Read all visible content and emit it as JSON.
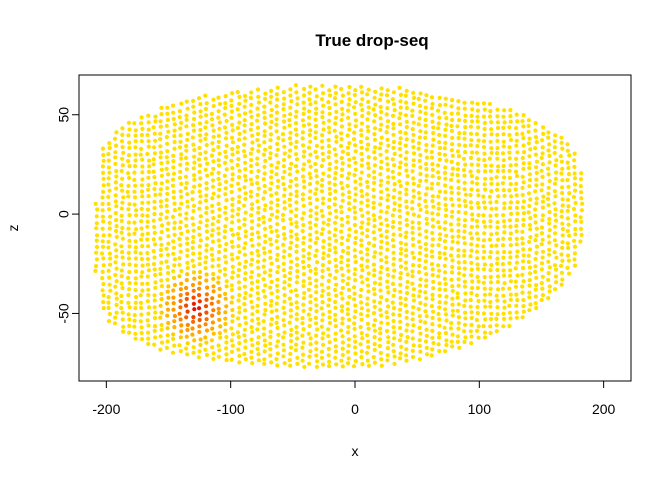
{
  "chart_data": {
    "type": "scatter",
    "title": "True drop-seq",
    "xlabel": "x",
    "ylabel": "z",
    "xlim": [
      -222,
      222
    ],
    "ylim": [
      -84,
      70
    ],
    "xticks": [
      -200,
      -100,
      0,
      100,
      200
    ],
    "yticks": [
      -50,
      0,
      50
    ],
    "grid": false,
    "point_color_base": "#FFE000",
    "point_color_mid": "#FF8C00",
    "point_color_high": "#E00000",
    "shape": {
      "x_min": -208,
      "x_max": 183,
      "z_top": 65,
      "z_bottom": -77
    },
    "hotspot": {
      "x": -128,
      "z": -47,
      "radius": 32
    }
  }
}
